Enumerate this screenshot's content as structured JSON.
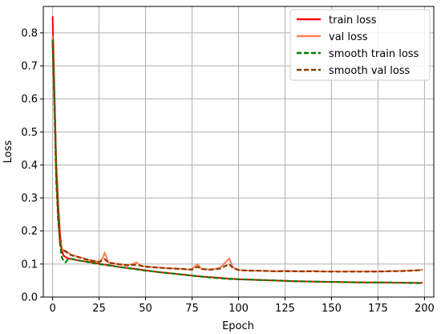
{
  "chart_data": {
    "type": "line",
    "xlabel": "Epoch",
    "ylabel": "Loss",
    "xlim": [
      -5,
      205
    ],
    "ylim": [
      0.0,
      0.88
    ],
    "x_ticks": [
      0,
      25,
      50,
      75,
      100,
      125,
      150,
      175,
      200
    ],
    "y_ticks": [
      0.0,
      0.1,
      0.2,
      0.3,
      0.4,
      0.5,
      0.6,
      0.7,
      0.8
    ],
    "x_tick_labels": [
      "0",
      "25",
      "50",
      "75",
      "100",
      "125",
      "150",
      "175",
      "200"
    ],
    "y_tick_labels": [
      "0.0",
      "0.1",
      "0.2",
      "0.3",
      "0.4",
      "0.5",
      "0.6",
      "0.7",
      "0.8"
    ],
    "grid": true,
    "legend_position": "top-right",
    "series": [
      {
        "name": "train loss",
        "color": "#ff0000",
        "style": "solid",
        "points": [
          [
            0,
            0.85
          ],
          [
            1,
            0.62
          ],
          [
            2,
            0.4
          ],
          [
            3,
            0.28
          ],
          [
            4,
            0.19
          ],
          [
            5,
            0.14
          ],
          [
            6,
            0.125
          ],
          [
            8,
            0.118
          ],
          [
            10,
            0.115
          ],
          [
            15,
            0.11
          ],
          [
            20,
            0.106
          ],
          [
            25,
            0.101
          ],
          [
            30,
            0.097
          ],
          [
            35,
            0.092
          ],
          [
            40,
            0.088
          ],
          [
            45,
            0.085
          ],
          [
            50,
            0.081
          ],
          [
            55,
            0.077
          ],
          [
            60,
            0.074
          ],
          [
            65,
            0.071
          ],
          [
            70,
            0.068
          ],
          [
            75,
            0.065
          ],
          [
            80,
            0.062
          ],
          [
            85,
            0.06
          ],
          [
            90,
            0.058
          ],
          [
            95,
            0.056
          ],
          [
            100,
            0.054
          ],
          [
            110,
            0.052
          ],
          [
            120,
            0.05
          ],
          [
            130,
            0.048
          ],
          [
            140,
            0.047
          ],
          [
            150,
            0.046
          ],
          [
            160,
            0.045
          ],
          [
            170,
            0.044
          ],
          [
            180,
            0.044
          ],
          [
            190,
            0.043
          ],
          [
            199,
            0.043
          ]
        ]
      },
      {
        "name": "val loss",
        "color": "#ff7f50",
        "style": "solid",
        "points": [
          [
            0,
            0.79
          ],
          [
            1,
            0.58
          ],
          [
            2,
            0.36
          ],
          [
            3,
            0.24
          ],
          [
            4,
            0.17
          ],
          [
            5,
            0.145
          ],
          [
            7,
            0.14
          ],
          [
            10,
            0.128
          ],
          [
            15,
            0.12
          ],
          [
            20,
            0.112
          ],
          [
            25,
            0.107
          ],
          [
            27,
            0.118
          ],
          [
            28,
            0.135
          ],
          [
            30,
            0.105
          ],
          [
            35,
            0.1
          ],
          [
            40,
            0.097
          ],
          [
            43,
            0.1
          ],
          [
            45,
            0.105
          ],
          [
            48,
            0.093
          ],
          [
            50,
            0.093
          ],
          [
            55,
            0.09
          ],
          [
            60,
            0.088
          ],
          [
            65,
            0.087
          ],
          [
            70,
            0.085
          ],
          [
            74,
            0.083
          ],
          [
            76,
            0.09
          ],
          [
            78,
            0.1
          ],
          [
            80,
            0.085
          ],
          [
            85,
            0.083
          ],
          [
            90,
            0.088
          ],
          [
            92,
            0.1
          ],
          [
            95,
            0.117
          ],
          [
            97,
            0.09
          ],
          [
            100,
            0.082
          ],
          [
            105,
            0.08
          ],
          [
            110,
            0.08
          ],
          [
            115,
            0.079
          ],
          [
            120,
            0.078
          ],
          [
            125,
            0.08
          ],
          [
            130,
            0.078
          ],
          [
            135,
            0.077
          ],
          [
            140,
            0.079
          ],
          [
            145,
            0.077
          ],
          [
            150,
            0.078
          ],
          [
            155,
            0.077
          ],
          [
            160,
            0.078
          ],
          [
            165,
            0.077
          ],
          [
            170,
            0.078
          ],
          [
            175,
            0.077
          ],
          [
            180,
            0.078
          ],
          [
            185,
            0.079
          ],
          [
            190,
            0.08
          ],
          [
            195,
            0.081
          ],
          [
            199,
            0.083
          ]
        ]
      },
      {
        "name": "smooth train loss",
        "color": "#008000",
        "style": "dashed",
        "points": [
          [
            0,
            0.78
          ],
          [
            1,
            0.6
          ],
          [
            2,
            0.38
          ],
          [
            3,
            0.25
          ],
          [
            4,
            0.16
          ],
          [
            5,
            0.12
          ],
          [
            6,
            0.108
          ],
          [
            7,
            0.105
          ],
          [
            8,
            0.112
          ],
          [
            10,
            0.116
          ],
          [
            15,
            0.11
          ],
          [
            20,
            0.105
          ],
          [
            25,
            0.1
          ],
          [
            30,
            0.096
          ],
          [
            35,
            0.092
          ],
          [
            40,
            0.088
          ],
          [
            45,
            0.084
          ],
          [
            50,
            0.08
          ],
          [
            55,
            0.077
          ],
          [
            60,
            0.074
          ],
          [
            65,
            0.071
          ],
          [
            70,
            0.068
          ],
          [
            75,
            0.065
          ],
          [
            80,
            0.062
          ],
          [
            85,
            0.059
          ],
          [
            90,
            0.057
          ],
          [
            95,
            0.055
          ],
          [
            100,
            0.054
          ],
          [
            110,
            0.052
          ],
          [
            120,
            0.05
          ],
          [
            130,
            0.048
          ],
          [
            140,
            0.047
          ],
          [
            150,
            0.046
          ],
          [
            160,
            0.045
          ],
          [
            170,
            0.044
          ],
          [
            180,
            0.044
          ],
          [
            190,
            0.043
          ],
          [
            199,
            0.042
          ]
        ]
      },
      {
        "name": "smooth val loss",
        "color": "#8b3a00",
        "style": "dashed",
        "points": [
          [
            0,
            0.77
          ],
          [
            1,
            0.57
          ],
          [
            2,
            0.35
          ],
          [
            3,
            0.23
          ],
          [
            4,
            0.165
          ],
          [
            5,
            0.142
          ],
          [
            7,
            0.138
          ],
          [
            10,
            0.127
          ],
          [
            15,
            0.119
          ],
          [
            20,
            0.111
          ],
          [
            25,
            0.106
          ],
          [
            28,
            0.115
          ],
          [
            30,
            0.104
          ],
          [
            35,
            0.1
          ],
          [
            40,
            0.096
          ],
          [
            45,
            0.098
          ],
          [
            50,
            0.092
          ],
          [
            55,
            0.09
          ],
          [
            60,
            0.088
          ],
          [
            65,
            0.086
          ],
          [
            70,
            0.085
          ],
          [
            75,
            0.083
          ],
          [
            78,
            0.092
          ],
          [
            80,
            0.085
          ],
          [
            85,
            0.083
          ],
          [
            90,
            0.086
          ],
          [
            95,
            0.1
          ],
          [
            97,
            0.088
          ],
          [
            100,
            0.082
          ],
          [
            105,
            0.08
          ],
          [
            110,
            0.08
          ],
          [
            120,
            0.078
          ],
          [
            130,
            0.078
          ],
          [
            140,
            0.078
          ],
          [
            150,
            0.077
          ],
          [
            160,
            0.077
          ],
          [
            170,
            0.077
          ],
          [
            180,
            0.078
          ],
          [
            190,
            0.079
          ],
          [
            199,
            0.082
          ]
        ]
      }
    ]
  }
}
